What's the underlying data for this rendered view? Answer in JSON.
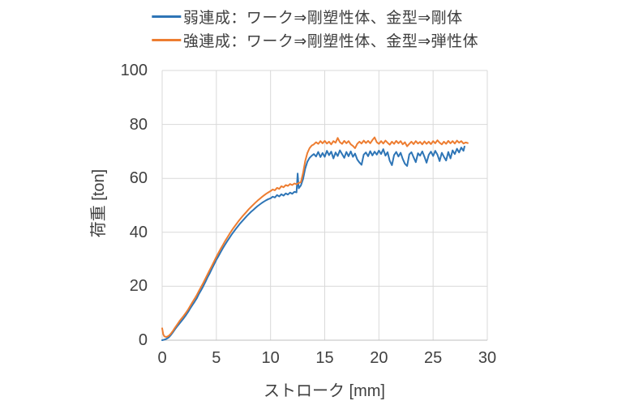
{
  "colors": {
    "background": "#ffffff",
    "grid": "#d9d9d9",
    "axis_line": "#bfbfbf",
    "text": "#404040",
    "series_weak": "#2e75b6",
    "series_strong": "#ed7d31"
  },
  "legend": {
    "items": [
      {
        "label": "弱連成：ワーク⇒剛塑性体、金型⇒剛体",
        "color": "#2e75b6"
      },
      {
        "label": "強連成：ワーク⇒剛塑性体、金型⇒弾性体",
        "color": "#ed7d31"
      }
    ]
  },
  "chart_data": {
    "type": "line",
    "title": "",
    "xlabel": "ストローク [mm]",
    "ylabel": "荷重 [ton]",
    "xlim": [
      0,
      30
    ],
    "ylim": [
      0,
      100
    ],
    "x_ticks": [
      0,
      5,
      10,
      15,
      20,
      25,
      30
    ],
    "y_ticks": [
      0,
      20,
      40,
      60,
      80,
      100
    ],
    "grid": true,
    "legend_position": "top",
    "series": [
      {
        "name": "弱連成：ワーク⇒剛塑性体、金型⇒剛体",
        "color": "#2e75b6",
        "points": [
          [
            0,
            0
          ],
          [
            0.2,
            0.2
          ],
          [
            0.4,
            0.5
          ],
          [
            0.6,
            1.0
          ],
          [
            0.8,
            1.9
          ],
          [
            1,
            3.0
          ],
          [
            1.2,
            4.1
          ],
          [
            1.4,
            5.2
          ],
          [
            1.6,
            6.2
          ],
          [
            1.8,
            7.2
          ],
          [
            2,
            8.2
          ],
          [
            2.2,
            9.3
          ],
          [
            2.4,
            10.5
          ],
          [
            2.6,
            11.9
          ],
          [
            2.8,
            13.1
          ],
          [
            3,
            14.3
          ],
          [
            3.2,
            15.6
          ],
          [
            3.4,
            17.2
          ],
          [
            3.6,
            18.6
          ],
          [
            3.8,
            20.1
          ],
          [
            4,
            21.7
          ],
          [
            4.2,
            23.4
          ],
          [
            4.4,
            24.9
          ],
          [
            4.6,
            26.6
          ],
          [
            4.8,
            28.2
          ],
          [
            5,
            29.8
          ],
          [
            5.2,
            31.2
          ],
          [
            5.4,
            32.7
          ],
          [
            5.6,
            34.1
          ],
          [
            5.8,
            35.4
          ],
          [
            6,
            36.7
          ],
          [
            6.2,
            37.9
          ],
          [
            6.4,
            39.1
          ],
          [
            6.6,
            40.2
          ],
          [
            6.8,
            41.3
          ],
          [
            7,
            42.3
          ],
          [
            7.2,
            43.3
          ],
          [
            7.4,
            44.2
          ],
          [
            7.6,
            45.1
          ],
          [
            7.8,
            46.0
          ],
          [
            8,
            46.8
          ],
          [
            8.2,
            47.6
          ],
          [
            8.4,
            48.3
          ],
          [
            8.6,
            49.0
          ],
          [
            8.8,
            49.7
          ],
          [
            9,
            50.3
          ],
          [
            9.2,
            50.9
          ],
          [
            9.4,
            51.4
          ],
          [
            9.6,
            51.9
          ],
          [
            9.8,
            52.3
          ],
          [
            10,
            52.6
          ],
          [
            10.2,
            53.2
          ],
          [
            10.4,
            52.9
          ],
          [
            10.6,
            53.8
          ],
          [
            10.8,
            53.3
          ],
          [
            11,
            54.1
          ],
          [
            11.2,
            53.6
          ],
          [
            11.4,
            54.4
          ],
          [
            11.6,
            54.0
          ],
          [
            11.8,
            54.7
          ],
          [
            12,
            54.3
          ],
          [
            12.2,
            55.0
          ],
          [
            12.4,
            54.8
          ],
          [
            12.5,
            61.8
          ],
          [
            12.6,
            56.3
          ],
          [
            12.8,
            57.4
          ],
          [
            13,
            59.8
          ],
          [
            13.2,
            63.6
          ],
          [
            13.4,
            66.2
          ],
          [
            13.6,
            67.6
          ],
          [
            13.8,
            68.4
          ],
          [
            14,
            69.0
          ],
          [
            14.2,
            68.1
          ],
          [
            14.4,
            69.8
          ],
          [
            14.6,
            67.9
          ],
          [
            14.8,
            69.4
          ],
          [
            15,
            68.0
          ],
          [
            15.2,
            70.2
          ],
          [
            15.4,
            68.6
          ],
          [
            15.6,
            69.9
          ],
          [
            15.8,
            67.4
          ],
          [
            16,
            69.6
          ],
          [
            16.2,
            68.3
          ],
          [
            16.4,
            70.4
          ],
          [
            16.6,
            69.0
          ],
          [
            16.8,
            67.6
          ],
          [
            17,
            69.8
          ],
          [
            17.2,
            68.2
          ],
          [
            17.4,
            70.0
          ],
          [
            17.6,
            68.0
          ],
          [
            17.8,
            69.2
          ],
          [
            18,
            67.0
          ],
          [
            18.2,
            65.9
          ],
          [
            18.4,
            65.0
          ],
          [
            18.6,
            68.8
          ],
          [
            18.8,
            69.6
          ],
          [
            19,
            68.2
          ],
          [
            19.2,
            70.1
          ],
          [
            19.4,
            68.5
          ],
          [
            19.6,
            69.9
          ],
          [
            19.8,
            68.8
          ],
          [
            20,
            70.3
          ],
          [
            20.2,
            69.0
          ],
          [
            20.4,
            70.8
          ],
          [
            20.6,
            68.4
          ],
          [
            20.8,
            69.7
          ],
          [
            21,
            66.5
          ],
          [
            21.2,
            64.9
          ],
          [
            21.4,
            68.6
          ],
          [
            21.6,
            69.8
          ],
          [
            21.8,
            68.1
          ],
          [
            22,
            69.5
          ],
          [
            22.2,
            67.2
          ],
          [
            22.4,
            65.4
          ],
          [
            22.6,
            64.6
          ],
          [
            22.8,
            68.9
          ],
          [
            23,
            69.7
          ],
          [
            23.2,
            67.8
          ],
          [
            23.4,
            66.0
          ],
          [
            23.6,
            69.3
          ],
          [
            23.8,
            68.4
          ],
          [
            24,
            70.0
          ],
          [
            24.2,
            68.0
          ],
          [
            24.4,
            65.8
          ],
          [
            24.6,
            68.7
          ],
          [
            24.8,
            69.9
          ],
          [
            25,
            68.3
          ],
          [
            25.2,
            70.2
          ],
          [
            25.4,
            68.8
          ],
          [
            25.6,
            66.4
          ],
          [
            25.8,
            69.5
          ],
          [
            26,
            68.0
          ],
          [
            26.2,
            66.6
          ],
          [
            26.4,
            69.8
          ],
          [
            26.6,
            67.4
          ],
          [
            26.8,
            70.4
          ],
          [
            27,
            69.0
          ],
          [
            27.2,
            71.0
          ],
          [
            27.4,
            69.6
          ],
          [
            27.6,
            71.4
          ],
          [
            27.8,
            70.2
          ],
          [
            27.9,
            71.8
          ]
        ]
      },
      {
        "name": "強連成：ワーク⇒剛塑性体、金型⇒弾性体",
        "color": "#ed7d31",
        "points": [
          [
            0,
            4.4
          ],
          [
            0.1,
            2.2
          ],
          [
            0.2,
            1.4
          ],
          [
            0.4,
            1.2
          ],
          [
            0.6,
            1.6
          ],
          [
            0.8,
            2.4
          ],
          [
            1,
            3.5
          ],
          [
            1.2,
            4.7
          ],
          [
            1.4,
            5.9
          ],
          [
            1.6,
            7.1
          ],
          [
            1.8,
            8.1
          ],
          [
            2,
            9.1
          ],
          [
            2.2,
            10.2
          ],
          [
            2.4,
            11.4
          ],
          [
            2.6,
            12.8
          ],
          [
            2.8,
            14.1
          ],
          [
            3,
            15.4
          ],
          [
            3.2,
            16.8
          ],
          [
            3.4,
            18.3
          ],
          [
            3.6,
            19.8
          ],
          [
            3.8,
            21.3
          ],
          [
            4,
            22.9
          ],
          [
            4.2,
            24.5
          ],
          [
            4.4,
            26.1
          ],
          [
            4.6,
            27.7
          ],
          [
            4.8,
            29.3
          ],
          [
            5,
            30.9
          ],
          [
            5.2,
            32.4
          ],
          [
            5.4,
            33.9
          ],
          [
            5.6,
            35.3
          ],
          [
            5.8,
            36.7
          ],
          [
            6,
            38.0
          ],
          [
            6.2,
            39.3
          ],
          [
            6.4,
            40.5
          ],
          [
            6.6,
            41.7
          ],
          [
            6.8,
            42.8
          ],
          [
            7,
            43.9
          ],
          [
            7.2,
            44.9
          ],
          [
            7.4,
            45.9
          ],
          [
            7.6,
            46.8
          ],
          [
            7.8,
            47.7
          ],
          [
            8,
            48.6
          ],
          [
            8.2,
            49.4
          ],
          [
            8.4,
            50.2
          ],
          [
            8.6,
            51.0
          ],
          [
            8.8,
            51.7
          ],
          [
            9,
            52.4
          ],
          [
            9.2,
            53.1
          ],
          [
            9.4,
            53.7
          ],
          [
            9.6,
            54.3
          ],
          [
            9.8,
            54.8
          ],
          [
            10,
            55.3
          ],
          [
            10.2,
            55.9
          ],
          [
            10.4,
            55.6
          ],
          [
            10.6,
            56.5
          ],
          [
            10.8,
            56.1
          ],
          [
            11,
            57.1
          ],
          [
            11.2,
            56.7
          ],
          [
            11.4,
            57.5
          ],
          [
            11.6,
            57.2
          ],
          [
            11.8,
            57.9
          ],
          [
            12,
            57.5
          ],
          [
            12.2,
            58.1
          ],
          [
            12.4,
            57.8
          ],
          [
            12.6,
            58.3
          ],
          [
            12.8,
            58.6
          ],
          [
            13,
            62.0
          ],
          [
            13.2,
            66.4
          ],
          [
            13.4,
            69.4
          ],
          [
            13.6,
            71.2
          ],
          [
            13.8,
            72.2
          ],
          [
            14,
            72.6
          ],
          [
            14.2,
            73.4
          ],
          [
            14.4,
            72.8
          ],
          [
            14.6,
            73.8
          ],
          [
            14.8,
            73.0
          ],
          [
            15,
            73.9
          ],
          [
            15.2,
            72.9
          ],
          [
            15.4,
            73.6
          ],
          [
            15.6,
            72.6
          ],
          [
            15.8,
            73.8
          ],
          [
            16,
            73.2
          ],
          [
            16.2,
            75.0
          ],
          [
            16.4,
            73.4
          ],
          [
            16.6,
            72.8
          ],
          [
            16.8,
            73.9
          ],
          [
            17,
            73.0
          ],
          [
            17.2,
            73.8
          ],
          [
            17.4,
            72.6
          ],
          [
            17.6,
            72.0
          ],
          [
            17.8,
            71.2
          ],
          [
            18,
            72.8
          ],
          [
            18.2,
            73.6
          ],
          [
            18.4,
            72.9
          ],
          [
            18.6,
            74.0
          ],
          [
            18.8,
            73.1
          ],
          [
            19,
            73.9
          ],
          [
            19.2,
            73.0
          ],
          [
            19.4,
            74.2
          ],
          [
            19.6,
            75.2
          ],
          [
            19.8,
            73.4
          ],
          [
            20,
            72.8
          ],
          [
            20.2,
            73.8
          ],
          [
            20.4,
            72.9
          ],
          [
            20.6,
            74.0
          ],
          [
            20.8,
            73.2
          ],
          [
            21,
            72.5
          ],
          [
            21.2,
            73.6
          ],
          [
            21.4,
            72.8
          ],
          [
            21.6,
            73.9
          ],
          [
            21.8,
            73.0
          ],
          [
            22,
            73.8
          ],
          [
            22.2,
            72.6
          ],
          [
            22.4,
            73.4
          ],
          [
            22.6,
            71.9
          ],
          [
            22.8,
            72.8
          ],
          [
            23,
            73.6
          ],
          [
            23.2,
            72.7
          ],
          [
            23.4,
            73.8
          ],
          [
            23.6,
            72.9
          ],
          [
            23.8,
            73.5
          ],
          [
            24,
            72.6
          ],
          [
            24.2,
            73.7
          ],
          [
            24.4,
            72.8
          ],
          [
            24.6,
            73.6
          ],
          [
            24.8,
            72.7
          ],
          [
            25,
            73.8
          ],
          [
            25.2,
            73.0
          ],
          [
            25.4,
            74.1
          ],
          [
            25.6,
            73.2
          ],
          [
            25.8,
            72.6
          ],
          [
            26,
            73.6
          ],
          [
            26.2,
            72.8
          ],
          [
            26.4,
            73.9
          ],
          [
            26.6,
            73.0
          ],
          [
            26.8,
            73.8
          ],
          [
            27,
            72.9
          ],
          [
            27.2,
            74.0
          ],
          [
            27.4,
            73.2
          ],
          [
            27.6,
            73.8
          ],
          [
            27.8,
            72.9
          ],
          [
            28,
            73.3
          ],
          [
            28.2,
            73.1
          ]
        ]
      }
    ]
  }
}
